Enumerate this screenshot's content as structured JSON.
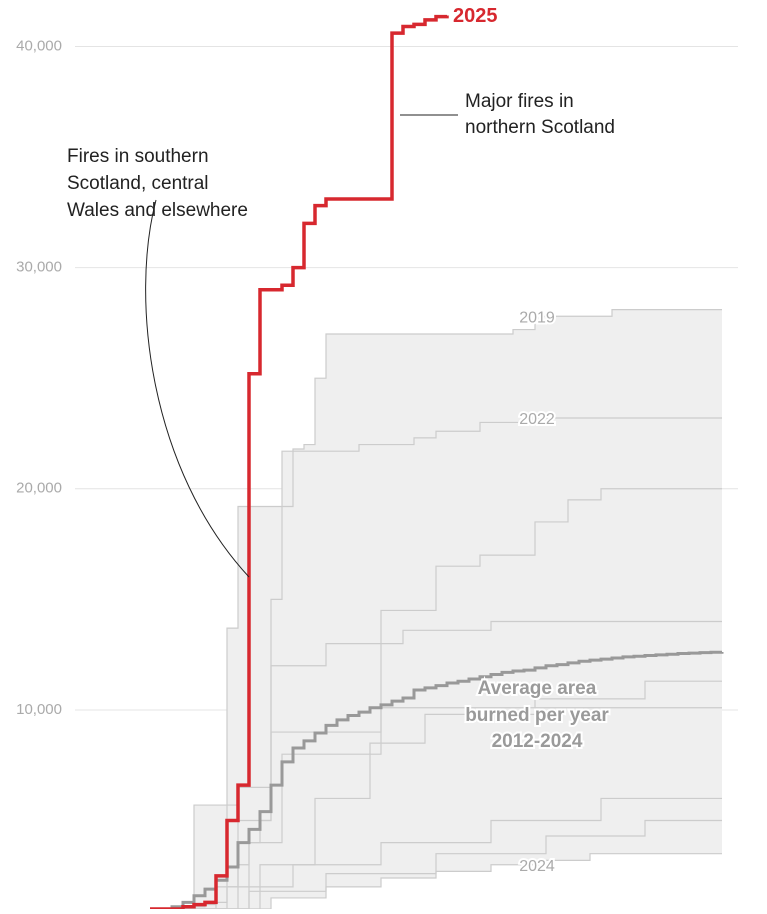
{
  "chart_data": {
    "type": "step-line",
    "x": [
      0,
      1,
      2,
      3,
      4,
      5,
      6,
      7,
      8,
      9,
      10,
      11,
      12,
      13,
      14,
      15,
      16,
      17,
      18,
      19,
      20,
      21,
      22,
      23,
      24,
      25,
      26,
      27,
      28,
      29,
      30,
      31,
      32,
      33,
      34,
      35,
      36,
      37,
      38,
      39,
      40,
      41,
      42,
      43,
      44,
      45,
      46,
      47,
      48,
      49,
      50,
      51,
      52
    ],
    "xlim": [
      0,
      52
    ],
    "ylim": [
      1000,
      42100
    ],
    "yticks": [
      {
        "value": 10000,
        "label": "10,000"
      },
      {
        "value": 20000,
        "label": "20,000"
      },
      {
        "value": 30000,
        "label": "30,000"
      },
      {
        "value": 40000,
        "label": "40,000"
      }
    ],
    "grid": true,
    "range_fill": "#efefef",
    "series": [
      {
        "name": "2019",
        "color": "#cccccc",
        "width": 1.2,
        "values": [
          1000,
          1000,
          1000,
          1000,
          1100,
          1200,
          1300,
          2000,
          3000,
          4000,
          5000,
          15000,
          21700,
          21800,
          22000,
          25000,
          27000,
          27000,
          27000,
          27000,
          27000,
          27000,
          27000,
          27000,
          27000,
          27000,
          27000,
          27000,
          27000,
          27000,
          27000,
          27000,
          27000,
          27200,
          27200,
          27800,
          27800,
          27800,
          27800,
          27800,
          27800,
          27800,
          28100,
          28100,
          28100,
          28100,
          28100,
          28100,
          28100,
          28100,
          28100,
          28100,
          28100
        ]
      },
      {
        "name": "2022",
        "color": "#cccccc",
        "width": 1.2,
        "values": [
          1000,
          1000,
          1000,
          1000,
          1000,
          1000,
          1000,
          13700,
          19200,
          19200,
          19200,
          19200,
          19200,
          21700,
          21700,
          21700,
          21700,
          21700,
          21700,
          22000,
          22000,
          22000,
          22000,
          22000,
          22300,
          22300,
          22600,
          22600,
          22600,
          22600,
          23000,
          23000,
          23000,
          23000,
          23000,
          23200,
          23200,
          23200,
          23200,
          23200,
          23200,
          23200,
          23200,
          23200,
          23200,
          23200,
          23200,
          23200,
          23200,
          23200,
          23200,
          23200,
          23200
        ]
      },
      {
        "name": "2024",
        "color": "#cccccc",
        "width": 1.2,
        "values": [
          1000,
          1000,
          1000,
          1000,
          1000,
          1000,
          1000,
          1000,
          1000,
          1000,
          1000,
          1500,
          1500,
          1500,
          1500,
          1500,
          2000,
          2000,
          2000,
          2000,
          2000,
          2400,
          2400,
          2400,
          2400,
          2400,
          2700,
          2700,
          2700,
          2700,
          2700,
          3000,
          3000,
          3000,
          3000,
          3000,
          3200,
          3200,
          3200,
          3200,
          3500,
          3500,
          3500,
          3500,
          3500,
          3500,
          3500,
          3500,
          3500,
          3500,
          3500,
          3500,
          3500
        ]
      },
      {
        "color": "#cccccc",
        "width": 1.2,
        "values": [
          1000,
          1000,
          1000,
          1000,
          1000,
          1000,
          1000,
          1000,
          1000,
          4000,
          4000,
          4000,
          8000,
          8000,
          8000,
          8000,
          8000,
          8000,
          8000,
          8000,
          8000,
          14500,
          14500,
          14500,
          14500,
          14500,
          16500,
          16500,
          16500,
          16500,
          17000,
          17000,
          17000,
          17000,
          17000,
          18500,
          18500,
          18500,
          19500,
          19500,
          19500,
          20000,
          20000,
          20000,
          20000,
          20000,
          20000,
          20000,
          20000,
          20000,
          20000,
          20000,
          20000
        ]
      },
      {
        "color": "#cccccc",
        "width": 1.2,
        "values": [
          1000,
          1000,
          1000,
          1000,
          1000,
          1000,
          1000,
          1000,
          5000,
          5000,
          5000,
          12000,
          12000,
          12000,
          12000,
          12000,
          13000,
          13000,
          13000,
          13000,
          13000,
          13000,
          13000,
          13600,
          13600,
          13600,
          13600,
          13600,
          13600,
          13600,
          13600,
          14000,
          14000,
          14000,
          14000,
          14000,
          14000,
          14000,
          14000,
          14000,
          14000,
          14000,
          14000,
          14000,
          14000,
          14000,
          14000,
          14000,
          14000,
          14000,
          14000,
          14000,
          14000
        ]
      },
      {
        "color": "#cccccc",
        "width": 1.2,
        "values": [
          1000,
          1000,
          1000,
          1000,
          1000,
          1000,
          1000,
          1000,
          1000,
          1000,
          3000,
          3000,
          3000,
          3000,
          3000,
          6000,
          6000,
          6000,
          6000,
          6000,
          8500,
          8500,
          8500,
          8500,
          8500,
          9800,
          9800,
          9800,
          9800,
          9800,
          9800,
          9800,
          9800,
          9800,
          9800,
          10500,
          10500,
          10500,
          10500,
          10500,
          10500,
          10500,
          10500,
          10500,
          10500,
          11300,
          11300,
          11300,
          11300,
          11300,
          11300,
          11300,
          11300
        ]
      },
      {
        "color": "#cccccc",
        "width": 1.2,
        "values": [
          1000,
          1000,
          1000,
          1000,
          1000,
          1000,
          2000,
          2000,
          2000,
          2000,
          2000,
          2000,
          2000,
          3000,
          3000,
          3000,
          3000,
          3000,
          3000,
          3000,
          3000,
          4000,
          4000,
          4000,
          4000,
          4000,
          4000,
          4000,
          4000,
          4000,
          4000,
          5000,
          5000,
          5000,
          5000,
          5000,
          5000,
          5000,
          5000,
          5000,
          5000,
          6000,
          6000,
          6000,
          6000,
          6000,
          6000,
          6000,
          6000,
          6000,
          6000,
          6000,
          6000
        ]
      },
      {
        "color": "#cccccc",
        "width": 1.2,
        "values": [
          1000,
          1000,
          1000,
          1000,
          1000,
          1000,
          1000,
          1000,
          1000,
          1800,
          1800,
          1800,
          1800,
          1800,
          1800,
          1800,
          2600,
          2600,
          2600,
          2600,
          2600,
          2600,
          2600,
          2600,
          2600,
          2600,
          3500,
          3500,
          3500,
          3500,
          3500,
          3500,
          3500,
          3500,
          3500,
          3500,
          4300,
          4300,
          4300,
          4300,
          4300,
          4300,
          4300,
          4300,
          4300,
          5000,
          5000,
          5000,
          5000,
          5000,
          5000,
          5000,
          5000
        ]
      },
      {
        "color": "#cccccc",
        "width": 1.2,
        "values": [
          1000,
          1000,
          1000,
          1000,
          5700,
          5700,
          5700,
          5700,
          6500,
          6500,
          6500,
          9000,
          9000,
          9000,
          9000,
          9000,
          9000,
          9000,
          9000,
          9000,
          9000,
          10100,
          10100,
          10100,
          10100,
          10100,
          10100,
          10100,
          10100,
          10100,
          10100,
          10100,
          10100,
          10100,
          10100,
          10100,
          10100,
          10100,
          10100,
          10100,
          10100,
          10100,
          10100,
          10100,
          10100,
          10100,
          10100,
          10100,
          10100,
          10100,
          10100,
          10100,
          10100
        ]
      },
      {
        "color": "#999999",
        "width": 3,
        "values": [
          1000,
          1000,
          1100,
          1300,
          1600,
          1900,
          2300,
          2900,
          4000,
          4600,
          5400,
          6600,
          7650,
          8280,
          8600,
          8960,
          9300,
          9550,
          9750,
          9900,
          10100,
          10230,
          10400,
          10540,
          10900,
          11000,
          11100,
          11220,
          11300,
          11400,
          11500,
          11600,
          11700,
          11760,
          11800,
          11900,
          12000,
          12050,
          12130,
          12200,
          12250,
          12300,
          12350,
          12400,
          12430,
          12460,
          12490,
          12520,
          12550,
          12570,
          12590,
          12610,
          12620
        ]
      },
      {
        "name": "2025",
        "color": "#d7282f",
        "width": 3.5,
        "values": [
          1000,
          1000,
          1000,
          1100,
          1200,
          1300,
          2500,
          5000,
          6600,
          25200,
          29000,
          29000,
          29200,
          30000,
          32000,
          32800,
          33100,
          33100,
          33100,
          33100,
          33100,
          33100,
          40600,
          40900,
          41000,
          41200,
          41350,
          41400,
          null,
          null,
          null,
          null,
          null,
          null,
          null,
          null,
          null,
          null,
          null,
          null,
          null,
          null,
          null,
          null,
          null,
          null,
          null,
          null,
          null,
          null,
          null,
          null,
          null
        ]
      }
    ],
    "annotations": [
      {
        "lines": [
          "Major fires in",
          "northern Scotland"
        ]
      },
      {
        "lines": [
          "Fires in southern",
          "Scotland, central",
          "Wales and elsewhere"
        ]
      },
      {
        "lines": [
          "Average area",
          "burned per year",
          "2012-2024"
        ]
      }
    ]
  }
}
